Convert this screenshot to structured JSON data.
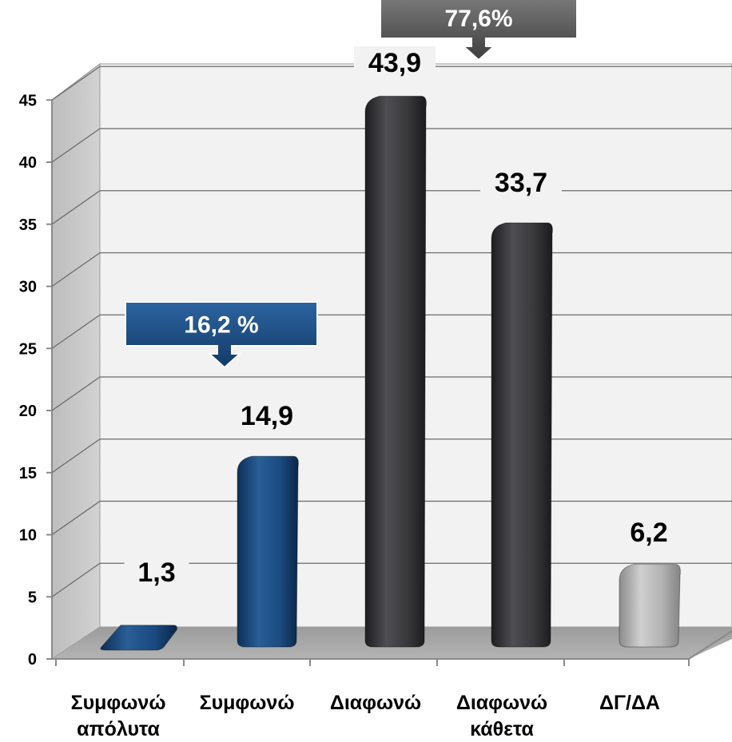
{
  "chart_data": {
    "type": "bar",
    "categories": [
      [
        "Συμφωνώ",
        "απόλυτα"
      ],
      [
        "Συμφωνώ"
      ],
      [
        "Διαφωνώ"
      ],
      [
        "Διαφωνώ",
        "κάθετα"
      ],
      [
        "ΔΓ/ΔΑ"
      ]
    ],
    "values": [
      1.3,
      14.9,
      43.9,
      33.7,
      6.2
    ],
    "value_labels": [
      "1,3",
      "14,9",
      "43,9",
      "33,7",
      "6,2"
    ],
    "yticks": [
      "0",
      "5",
      "10",
      "15",
      "20",
      "25",
      "30",
      "35",
      "40",
      "45"
    ],
    "ylim": [
      0,
      45
    ],
    "grid": true,
    "legend": "none",
    "title": "",
    "xlabel": "",
    "ylabel": "",
    "bar_colors": [
      "#1a4a80",
      "#1a4a80",
      "#3a3a3c",
      "#3a3a3c",
      "#a8a8a8"
    ],
    "callouts": [
      {
        "text": "16,2 %",
        "color": "#1e4f86",
        "applies_to": [
          "Συμφωνώ απόλυτα",
          "Συμφωνώ"
        ]
      },
      {
        "text": "77,6%",
        "color": "#5a5a5a",
        "applies_to": [
          "Διαφωνώ",
          "Διαφωνώ κάθετα"
        ]
      }
    ]
  }
}
